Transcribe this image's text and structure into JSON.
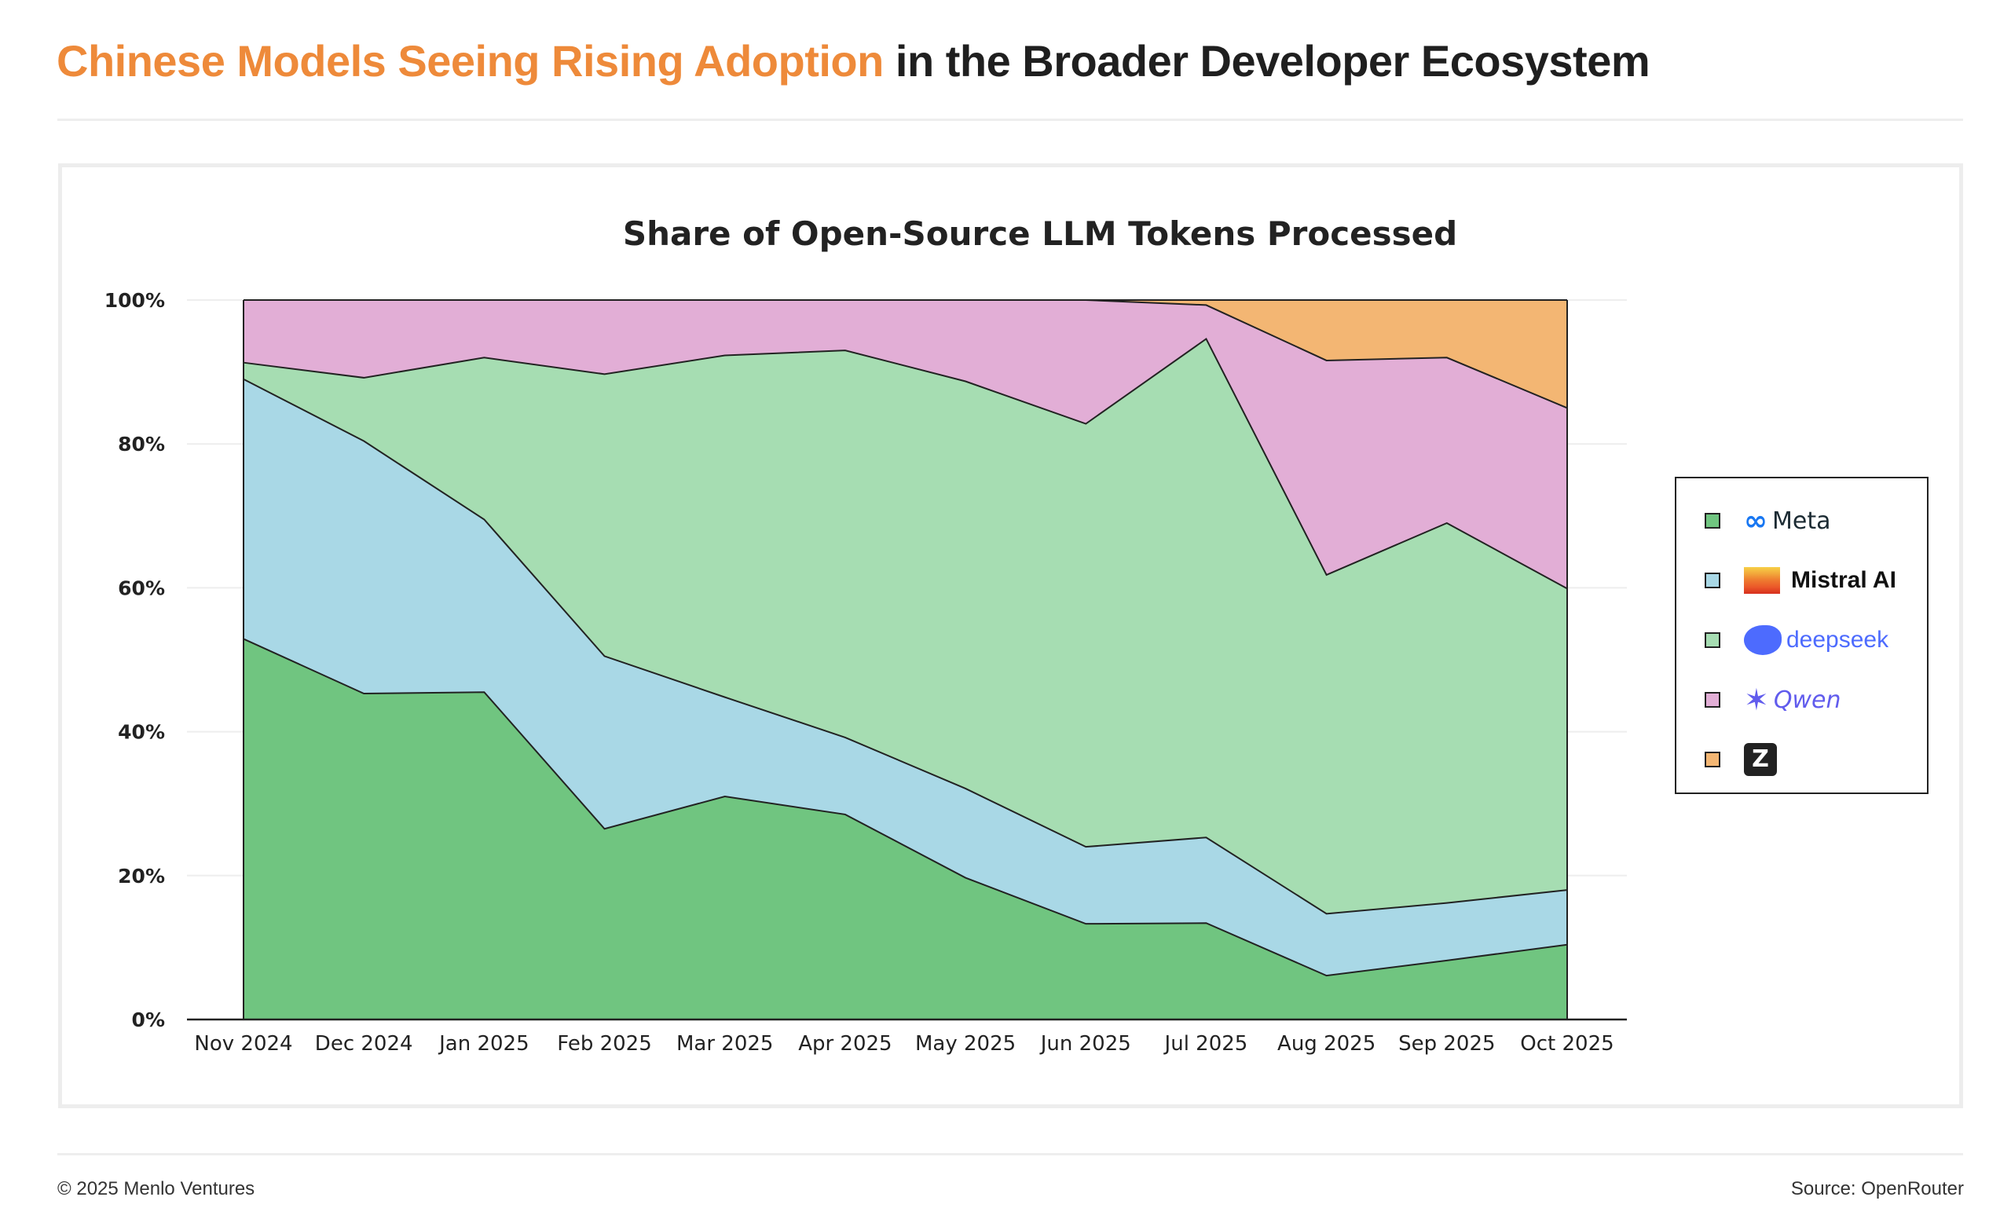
{
  "header": {
    "title_highlight": "Chinese Models Seeing Rising Adoption",
    "title_rest": " in the Broader Developer Ecosystem",
    "highlight_color": "#EE8A3A"
  },
  "footer": {
    "copyright": "© 2025 Menlo Ventures",
    "source": "Source: OpenRouter"
  },
  "chart_data": {
    "type": "area",
    "stacked": true,
    "title": "Share of Open-Source LLM Tokens Processed",
    "xlabel": "",
    "ylabel": "",
    "categories": [
      "Nov 2024",
      "Dec 2024",
      "Jan 2025",
      "Feb 2025",
      "Mar 2025",
      "Apr 2025",
      "May 2025",
      "Jun 2025",
      "Jul 2025",
      "Aug 2025",
      "Sep 2025",
      "Oct 2025"
    ],
    "ylim": [
      0,
      100
    ],
    "yticks": [
      "0%",
      "20%",
      "40%",
      "60%",
      "80%",
      "100%"
    ],
    "ytick_values": [
      0,
      20,
      40,
      60,
      80,
      100
    ],
    "grid": "horizontal",
    "legend_placement": "right",
    "series": [
      {
        "name": "Meta",
        "color": "#70C580",
        "icon": "meta-logo",
        "values": [
          52.9,
          45.3,
          45.5,
          26.5,
          31.0,
          28.5,
          19.7,
          13.3,
          13.4,
          6.1,
          8.2,
          10.4
        ]
      },
      {
        "name": "Mistral AI",
        "color": "#A9D8E6",
        "icon": "mistral-logo",
        "values": [
          36.1,
          35.1,
          24.0,
          24.0,
          13.8,
          10.7,
          12.4,
          10.7,
          11.9,
          8.6,
          8.0,
          7.6
        ]
      },
      {
        "name": "deepseek",
        "color": "#A6DDB2",
        "icon": "deepseek-logo",
        "values": [
          2.3,
          8.8,
          22.5,
          39.2,
          47.5,
          53.8,
          56.6,
          58.8,
          69.3,
          47.1,
          52.8,
          41.9
        ]
      },
      {
        "name": "Qwen",
        "color": "#E2AED6",
        "icon": "qwen-logo",
        "values": [
          8.7,
          10.8,
          8.0,
          10.3,
          7.7,
          7.0,
          11.3,
          17.2,
          4.7,
          29.8,
          23.0,
          25.1
        ]
      },
      {
        "name": "Z",
        "color": "#F3B673",
        "icon": "zhipu-logo",
        "values": [
          0,
          0,
          0,
          0,
          0,
          0,
          0,
          0,
          0.7,
          8.4,
          8.0,
          15.0
        ]
      }
    ]
  }
}
